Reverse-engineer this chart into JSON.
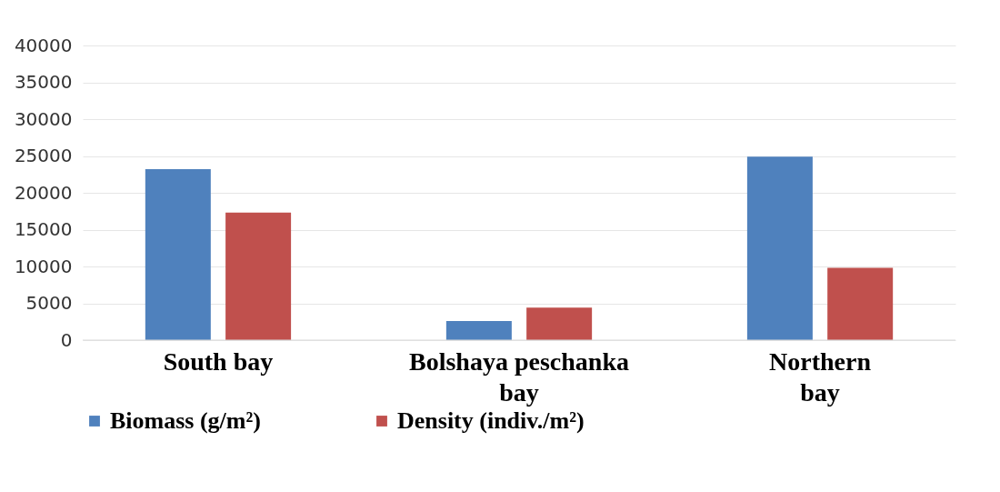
{
  "chart_data": {
    "type": "bar",
    "categories": [
      "South bay",
      "Bolshaya peschanka bay",
      "Northern bay"
    ],
    "series": [
      {
        "name": "Biomass (g/m²)",
        "color": "#4f81bd",
        "values": [
          23200,
          2600,
          24900
        ]
      },
      {
        "name": "Density (indiv./m²)",
        "color": "#c0504d",
        "values": [
          17300,
          4400,
          9800
        ]
      }
    ],
    "ylim": [
      0,
      40000
    ],
    "yticks": [
      0,
      5000,
      10000,
      15000,
      20000,
      25000,
      30000,
      35000,
      40000
    ],
    "grid": "y",
    "legend": "bottom"
  }
}
